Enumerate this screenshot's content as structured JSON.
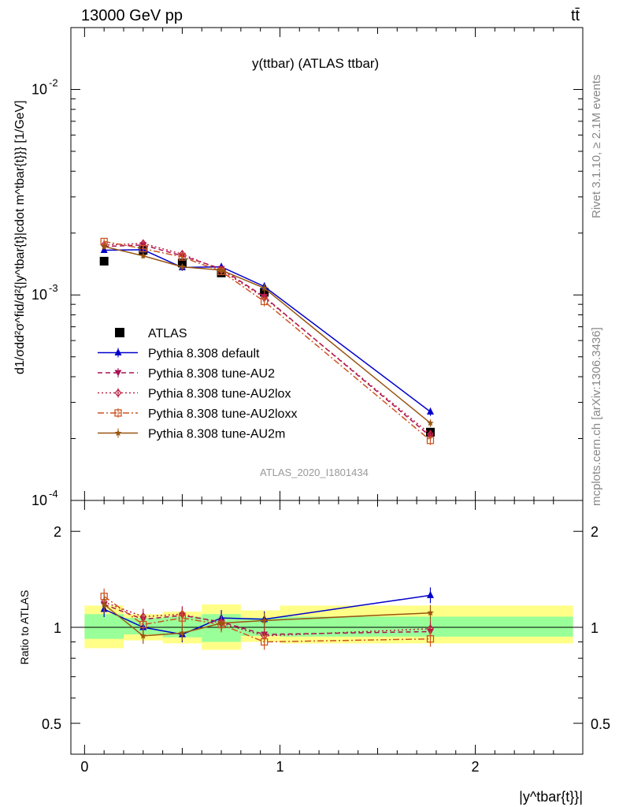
{
  "header": {
    "energy_label": "13000 GeV pp",
    "process_label": "tt̄",
    "title": "y(ttbar) (ATLAS ttbar)",
    "watermark": "ATLAS_2020_I1801434",
    "side_rivet": "Rivet 3.1.10, ≥ 2.1M events",
    "side_mcplots": "mcplots.cern.ch [arXiv:1306.3436]"
  },
  "chart_data": [
    {
      "type": "line",
      "panel": "main",
      "title": "y(ttbar) (ATLAS ttbar)",
      "ylabel": "d1/σdd²σ^fid/d²{|y^tbar{t}|cdot m^tbar{t}}} [1/GeV]",
      "yscale": "log",
      "ylim": [
        0.0001,
        0.02
      ],
      "xlim": [
        -0.07,
        2.55
      ],
      "y_tick_labels": [
        "10^-4",
        "10^-3",
        "10^-2"
      ],
      "x": [
        0.1,
        0.3,
        0.5,
        0.7,
        0.92,
        1.77
      ],
      "series": [
        {
          "name": "ATLAS",
          "color": "#000000",
          "marker": "square",
          "values": [
            0.00146,
            0.00165,
            0.00143,
            0.00128,
            0.00103,
            0.000215
          ],
          "errors": [
            3e-05,
            3e-05,
            3e-05,
            3e-05,
            3e-05,
            1e-05
          ]
        },
        {
          "name": "Pythia 8.308 default",
          "color": "#0000cc",
          "marker": "triangle-up",
          "dash": "",
          "values": [
            0.00165,
            0.00166,
            0.00136,
            0.00137,
            0.0011,
            0.00027
          ],
          "errors": [
            5e-05,
            5e-05,
            5e-05,
            5e-05,
            5e-05,
            1.2e-05
          ]
        },
        {
          "name": "Pythia 8.308 tune-AU2",
          "color": "#aa1155",
          "marker": "triangle-down",
          "dash": "6,4",
          "values": [
            0.00172,
            0.00175,
            0.00155,
            0.00134,
            0.00098,
            0.000205
          ],
          "errors": [
            5e-05,
            5e-05,
            5e-05,
            5e-05,
            5e-05,
            1e-05
          ]
        },
        {
          "name": "Pythia 8.308 tune-AU2lox",
          "color": "#bb2244",
          "marker": "diamond-open",
          "dash": "2,3",
          "values": [
            0.00175,
            0.00178,
            0.00158,
            0.00132,
            0.00097,
            0.00021
          ],
          "errors": [
            5e-05,
            5e-05,
            5e-05,
            5e-05,
            5e-05,
            1e-05
          ]
        },
        {
          "name": "Pythia 8.308 tune-AU2loxx",
          "color": "#cc5522",
          "marker": "square-open",
          "dash": "8,3,2,3",
          "values": [
            0.00182,
            0.00168,
            0.00153,
            0.0013,
            0.00093,
            0.000196
          ],
          "errors": [
            5e-05,
            5e-05,
            5e-05,
            5e-05,
            5e-05,
            1e-05
          ]
        },
        {
          "name": "Pythia 8.308 tune-AU2m",
          "color": "#995511",
          "marker": "star",
          "dash": "",
          "values": [
            0.00172,
            0.00155,
            0.00137,
            0.00132,
            0.00108,
            0.000238
          ],
          "errors": [
            5e-05,
            5e-05,
            5e-05,
            5e-05,
            5e-05,
            1e-05
          ]
        }
      ]
    },
    {
      "type": "line",
      "panel": "ratio",
      "ylabel": "Ratio to ATLAS",
      "xlabel": "|y^tbar{t}}|",
      "yscale": "log",
      "ylim": [
        0.4,
        2.5
      ],
      "xlim": [
        -0.07,
        2.55
      ],
      "y_tick_labels": [
        "0.5",
        "1",
        "2"
      ],
      "x_tick_labels": [
        "0",
        "1",
        "2"
      ],
      "bands": {
        "bins": [
          0.0,
          0.2,
          0.4,
          0.6,
          0.8,
          1.0,
          2.5
        ],
        "inner_low": [
          0.92,
          0.95,
          0.93,
          0.9,
          0.94,
          0.935
        ],
        "inner_high": [
          1.1,
          1.07,
          1.08,
          1.1,
          1.07,
          1.08
        ],
        "outer_low": [
          0.86,
          0.91,
          0.89,
          0.85,
          0.9,
          0.89
        ],
        "outer_high": [
          1.17,
          1.1,
          1.12,
          1.18,
          1.13,
          1.17
        ],
        "inner_color": "#99ff99",
        "outer_color": "#ffff88"
      },
      "series": [
        {
          "name": "Pythia 8.308 default",
          "values": [
            1.14,
            1.0,
            0.95,
            1.07,
            1.06,
            1.26
          ]
        },
        {
          "name": "Pythia 8.308 tune-AU2",
          "values": [
            1.18,
            1.06,
            1.09,
            1.04,
            0.95,
            0.97
          ]
        },
        {
          "name": "Pythia 8.308 tune-AU2lox",
          "values": [
            1.2,
            1.08,
            1.1,
            1.03,
            0.94,
            0.99
          ]
        },
        {
          "name": "Pythia 8.308 tune-AU2loxx",
          "values": [
            1.25,
            1.02,
            1.07,
            1.02,
            0.9,
            0.92
          ]
        },
        {
          "name": "Pythia 8.308 tune-AU2m",
          "values": [
            1.18,
            0.94,
            0.96,
            1.03,
            1.05,
            1.11
          ]
        }
      ]
    }
  ]
}
